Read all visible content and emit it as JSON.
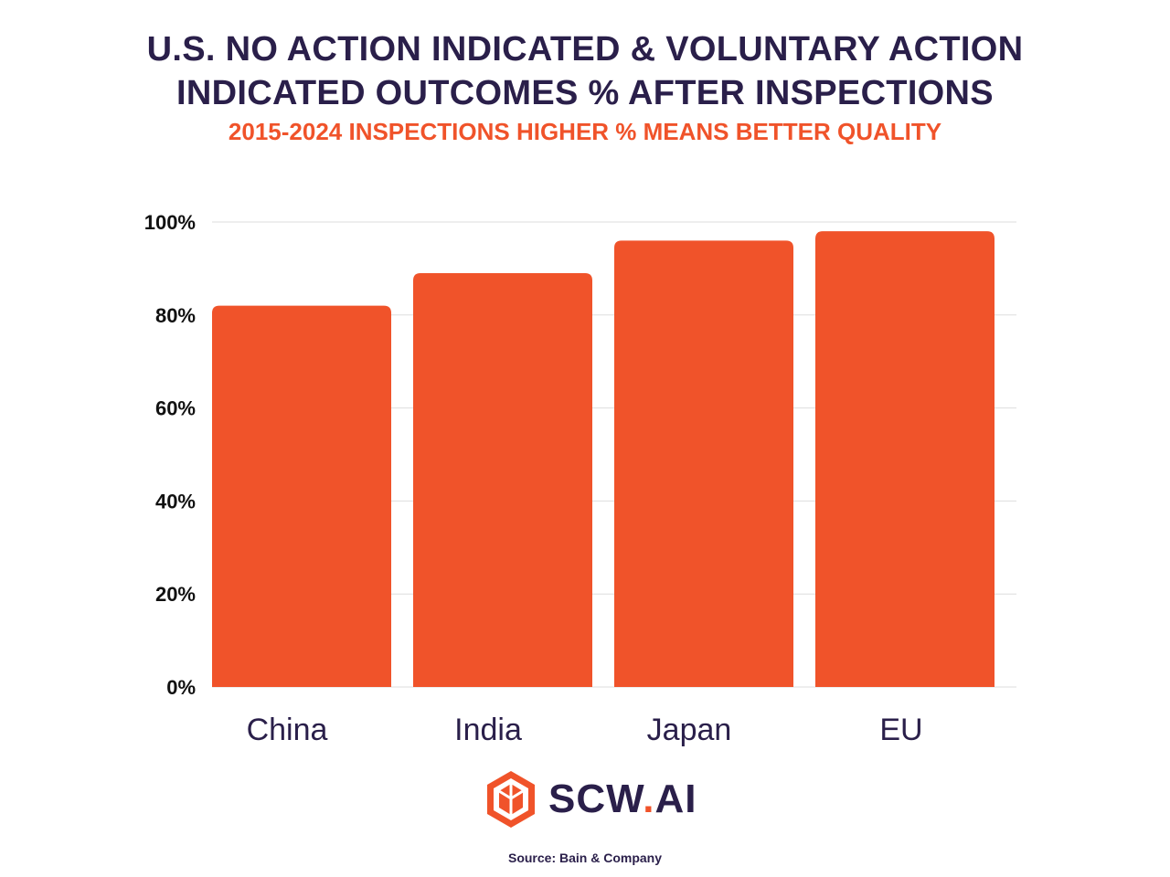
{
  "title_lines": [
    "U.S. NO ACTION INDICATED & VOLUNTARY ACTION",
    "INDICATED OUTCOMES % AFTER INSPECTIONS"
  ],
  "subtitle": "2015-2024 INSPECTIONS HIGHER % MEANS BETTER QUALITY",
  "colors": {
    "bar": "#f0532a",
    "title": "#2a1f4a",
    "subtitle": "#f0532a",
    "grid": "#dddddd",
    "category_label": "#2a1f4a"
  },
  "chart_data": {
    "type": "bar",
    "categories": [
      "China",
      "India",
      "Japan",
      "EU"
    ],
    "values": [
      82,
      89,
      96,
      98
    ],
    "ylim": [
      0,
      100
    ],
    "yticks": [
      0,
      20,
      40,
      60,
      80,
      100
    ],
    "ytick_labels": [
      "0%",
      "20%",
      "40%",
      "60%",
      "80%",
      "100%"
    ],
    "grid": true,
    "legend": "none"
  },
  "logo": {
    "icon": "package-box-icon",
    "text_main": "SCW",
    "text_dot": ".",
    "text_end": "AI"
  },
  "source": "Source: Bain &  Company"
}
